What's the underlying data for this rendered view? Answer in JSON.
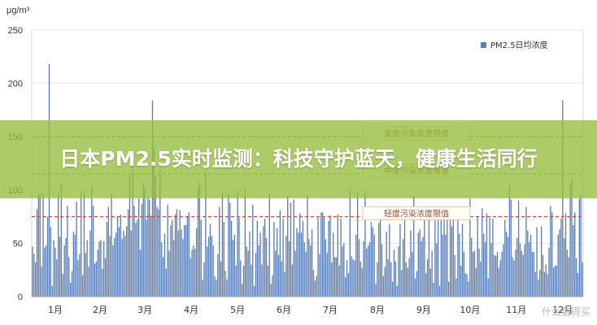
{
  "banner": {
    "title": "日本PM2.5实时监测：科技守护蓝天，健康生活同行"
  },
  "watermark": "什么值得买",
  "chart_data": {
    "type": "bar",
    "unit": "μg/m³",
    "ylim": [
      0,
      250
    ],
    "yticks": [
      0,
      50,
      100,
      150,
      200,
      250
    ],
    "months": [
      "1月",
      "2月",
      "3月",
      "4月",
      "5月",
      "6月",
      "7月",
      "8月",
      "9月",
      "10月",
      "11月",
      "12月"
    ],
    "legend": {
      "label": "PM2.5日均浓度",
      "position": "top-right"
    },
    "thresholds": [
      {
        "label": "重度污染浓度限值",
        "value": 150,
        "color": "#c0902a"
      },
      {
        "label": "中度污染浓度限值",
        "value": 115,
        "color": "#c0902a"
      },
      {
        "label": "轻度污染浓度限值",
        "value": 75,
        "color": "#d2503a"
      }
    ],
    "series_color": "#5b7fb5",
    "daily_values": [
      47,
      40,
      32,
      82,
      96,
      96,
      28,
      97,
      46,
      48,
      75,
      218,
      65,
      10,
      53,
      46,
      35,
      98,
      56,
      105,
      21,
      48,
      55,
      85,
      37,
      13,
      24,
      61,
      58,
      89,
      34,
      40,
      99,
      20,
      98,
      41,
      53,
      28,
      62,
      103,
      85,
      31,
      33,
      44,
      52,
      53,
      26,
      52,
      36,
      70,
      84,
      57,
      96,
      48,
      55,
      60,
      75,
      65,
      77,
      54,
      62,
      57,
      66,
      82,
      115,
      62,
      135,
      85,
      69,
      72,
      92,
      44,
      87,
      107,
      103,
      72,
      93,
      91,
      76,
      184,
      141,
      113,
      84,
      82,
      119,
      51,
      37,
      59,
      26,
      86,
      43,
      67,
      72,
      53,
      77,
      82,
      62,
      81,
      63,
      54,
      67,
      67,
      75,
      79,
      36,
      44,
      48,
      45,
      64,
      102,
      107,
      72,
      16,
      32,
      117,
      47,
      56,
      68,
      57,
      48,
      19,
      16,
      40,
      84,
      33,
      98,
      70,
      24,
      16,
      96,
      88,
      71,
      53,
      58,
      29,
      100,
      74,
      34,
      12,
      29,
      101,
      47,
      43,
      61,
      30,
      86,
      10,
      41,
      71,
      48,
      60,
      30,
      66,
      73,
      55,
      29,
      96,
      12,
      20,
      70,
      43,
      64,
      39,
      81,
      33,
      73,
      23,
      57,
      95,
      52,
      88,
      30,
      91,
      43,
      64,
      60,
      78,
      60,
      71,
      51,
      42,
      95,
      54,
      48,
      63,
      25,
      15,
      19,
      74,
      40,
      79,
      79,
      74,
      54,
      41,
      71,
      76,
      32,
      60,
      37,
      37,
      77,
      29,
      73,
      47,
      50,
      18,
      34,
      22,
      100,
      38,
      35,
      34,
      58,
      99,
      54,
      33,
      27,
      52,
      99,
      45,
      48,
      51,
      70,
      65,
      58,
      12,
      32,
      69,
      82,
      49,
      19,
      28,
      61,
      35,
      68,
      32,
      14,
      44,
      33,
      10,
      47,
      68,
      25,
      54,
      75,
      32,
      27,
      36,
      62,
      42,
      95,
      17,
      24,
      60,
      63,
      52,
      56,
      77,
      22,
      35,
      82,
      26,
      43,
      13,
      79,
      50,
      77,
      10,
      83,
      58,
      72,
      58,
      81,
      14,
      79,
      66,
      75,
      39,
      17,
      74,
      59,
      29,
      68,
      42,
      22,
      21,
      14,
      92,
      55,
      42,
      43,
      27,
      75,
      45,
      33,
      83,
      59,
      51,
      78,
      17,
      74,
      50,
      73,
      39,
      38,
      42,
      27,
      34,
      42,
      49,
      72,
      61,
      56,
      104,
      91,
      37,
      34,
      44,
      55,
      90,
      50,
      43,
      39,
      49,
      84,
      62,
      51,
      58,
      42,
      42,
      23,
      65,
      16,
      25,
      66,
      39,
      23,
      30,
      21,
      46,
      85,
      79,
      27,
      29,
      29,
      58,
      63,
      73,
      184,
      55,
      78,
      44,
      37,
      105,
      110,
      67,
      79,
      36,
      22,
      92,
      96,
      32
    ]
  }
}
